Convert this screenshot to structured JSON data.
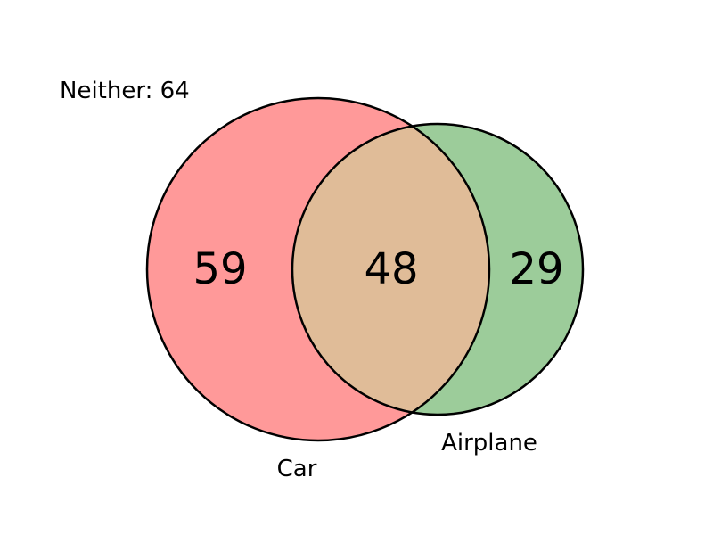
{
  "chart_data": {
    "type": "venn",
    "sets": [
      {
        "name": "Car",
        "only": 59,
        "color": "#ff9999"
      },
      {
        "name": "Airplane",
        "only": 29,
        "color": "#9ccc9a"
      }
    ],
    "intersection": 48,
    "intersection_color": "#e0bc98",
    "neither": 64
  },
  "labels": {
    "neither": "Neither: 64",
    "set_a": "Car",
    "set_b": "Airplane",
    "count_a_only": "59",
    "count_both": "48",
    "count_b_only": "29"
  }
}
